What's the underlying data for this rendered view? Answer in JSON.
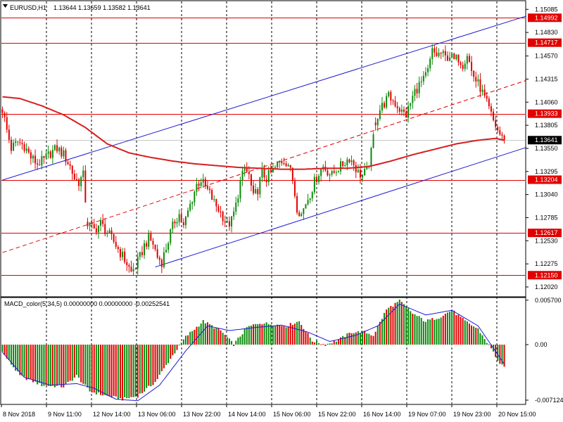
{
  "chart_data": [
    {
      "type": "candlestick",
      "header": {
        "symbol_tf": "EURUSD,H1",
        "ohlc": "1.13644 1.13659 1.13582 1.13641"
      },
      "y_axis": {
        "ylim": [
          1.1202,
          1.15095
        ],
        "ticks": [
          "1.15085",
          "1.14830",
          "1.14570",
          "1.14315",
          "1.14060",
          "1.13805",
          "1.13550",
          "1.13295",
          "1.13040",
          "1.12785",
          "1.12530",
          "1.12275",
          "1.12020"
        ]
      },
      "x_axis": {
        "labels": [
          "8 Nov 2018",
          "9 Nov 11:00",
          "12 Nov 14:00",
          "13 Nov 06:00",
          "13 Nov 22:00",
          "14 Nov 14:00",
          "15 Nov 06:00",
          "15 Nov 22:00",
          "16 Nov 14:00",
          "19 Nov 07:00",
          "19 Nov 23:00",
          "20 Nov 15:00"
        ]
      },
      "horizontal_levels": [
        {
          "label": "1.14992",
          "value": 1.14992
        },
        {
          "label": "1.14717",
          "value": 1.14717
        },
        {
          "label": "1.13933",
          "value": 1.13933
        },
        {
          "label": "1.13204",
          "value": 1.13204
        },
        {
          "label": "1.12617",
          "value": 1.12617
        },
        {
          "label": "1.12150",
          "value": 1.1215
        }
      ],
      "current_price": {
        "label": "1.13641",
        "value": 1.13641
      },
      "colors": {
        "bull": "#0a8a0a",
        "bear": "#e00000",
        "moving_average": "#d81e1e",
        "channel": "#1a1ad4",
        "level_line": "#e00000",
        "grid": "#000000"
      },
      "price_path": [
        [
          0,
          1.1398
        ],
        [
          2,
          1.1375
        ],
        [
          4,
          1.1355
        ],
        [
          7,
          1.1362
        ],
        [
          10,
          1.1358
        ],
        [
          13,
          1.1345
        ],
        [
          16,
          1.1338
        ],
        [
          19,
          1.1342
        ],
        [
          22,
          1.135
        ],
        [
          25,
          1.1355
        ],
        [
          28,
          1.1348
        ],
        [
          31,
          1.1335
        ],
        [
          33,
          1.1322
        ],
        [
          35,
          1.1318
        ],
        [
          37,
          1.1325
        ],
        [
          39,
          1.1272
        ],
        [
          42,
          1.1265
        ],
        [
          45,
          1.1272
        ],
        [
          48,
          1.1262
        ],
        [
          51,
          1.1252
        ],
        [
          54,
          1.124
        ],
        [
          57,
          1.1228
        ],
        [
          59,
          1.1218
        ],
        [
          61,
          1.1225
        ],
        [
          63,
          1.1235
        ],
        [
          65,
          1.1248
        ],
        [
          67,
          1.1255
        ],
        [
          69,
          1.125
        ],
        [
          71,
          1.1235
        ],
        [
          73,
          1.123
        ],
        [
          75,
          1.1245
        ],
        [
          77,
          1.1262
        ],
        [
          79,
          1.1275
        ],
        [
          81,
          1.1282
        ],
        [
          83,
          1.1268
        ],
        [
          85,
          1.1285
        ],
        [
          87,
          1.13
        ],
        [
          89,
          1.1315
        ],
        [
          91,
          1.132
        ],
        [
          93,
          1.1312
        ],
        [
          95,
          1.1305
        ],
        [
          97,
          1.1295
        ],
        [
          99,
          1.1288
        ],
        [
          101,
          1.128
        ],
        [
          103,
          1.127
        ],
        [
          105,
          1.1275
        ],
        [
          107,
          1.1292
        ],
        [
          109,
          1.1318
        ],
        [
          111,
          1.1332
        ],
        [
          113,
          1.1325
        ],
        [
          115,
          1.13
        ],
        [
          117,
          1.131
        ],
        [
          119,
          1.1328
        ],
        [
          121,
          1.1322
        ],
        [
          123,
          1.1328
        ],
        [
          125,
          1.1333
        ],
        [
          127,
          1.134
        ],
        [
          129,
          1.1342
        ],
        [
          131,
          1.1338
        ],
        [
          133,
          1.132
        ],
        [
          135,
          1.129
        ],
        [
          137,
          1.1282
        ],
        [
          139,
          1.1295
        ],
        [
          141,
          1.1305
        ],
        [
          143,
          1.1318
        ],
        [
          145,
          1.1328
        ],
        [
          147,
          1.1335
        ],
        [
          149,
          1.133
        ],
        [
          151,
          1.1325
        ],
        [
          153,
          1.1332
        ],
        [
          155,
          1.1335
        ],
        [
          157,
          1.134
        ],
        [
          159,
          1.1345
        ],
        [
          161,
          1.1338
        ],
        [
          163,
          1.1328
        ],
        [
          165,
          1.1325
        ],
        [
          167,
          1.133
        ],
        [
          169,
          1.135
        ],
        [
          171,
          1.1385
        ],
        [
          173,
          1.1398
        ],
        [
          175,
          1.1405
        ],
        [
          177,
          1.1412
        ],
        [
          179,
          1.1408
        ],
        [
          181,
          1.1402
        ],
        [
          183,
          1.1395
        ],
        [
          185,
          1.1392
        ],
        [
          187,
          1.1405
        ],
        [
          189,
          1.1418
        ],
        [
          191,
          1.1425
        ],
        [
          193,
          1.143
        ],
        [
          195,
          1.144
        ],
        [
          197,
          1.1462
        ],
        [
          199,
          1.1458
        ],
        [
          201,
          1.146
        ],
        [
          203,
          1.1455
        ],
        [
          205,
          1.1458
        ],
        [
          207,
          1.1452
        ],
        [
          209,
          1.1455
        ],
        [
          211,
          1.1448
        ],
        [
          213,
          1.146
        ],
        [
          215,
          1.144
        ],
        [
          217,
          1.143
        ],
        [
          219,
          1.1422
        ],
        [
          221,
          1.141
        ],
        [
          223,
          1.1398
        ],
        [
          225,
          1.1385
        ],
        [
          227,
          1.1375
        ],
        [
          229,
          1.1366
        ],
        [
          230,
          1.13641
        ]
      ],
      "moving_average": [
        [
          0,
          1.1412
        ],
        [
          8,
          1.141
        ],
        [
          18,
          1.1402
        ],
        [
          28,
          1.1392
        ],
        [
          38,
          1.1378
        ],
        [
          48,
          1.136
        ],
        [
          58,
          1.135
        ],
        [
          68,
          1.1345
        ],
        [
          78,
          1.1341
        ],
        [
          88,
          1.1338
        ],
        [
          98,
          1.1336
        ],
        [
          108,
          1.1334
        ],
        [
          118,
          1.1333
        ],
        [
          128,
          1.1332
        ],
        [
          138,
          1.1332
        ],
        [
          148,
          1.1333
        ],
        [
          158,
          1.1333
        ],
        [
          168,
          1.1335
        ],
        [
          178,
          1.1341
        ],
        [
          188,
          1.1348
        ],
        [
          198,
          1.1354
        ],
        [
          208,
          1.136
        ],
        [
          218,
          1.1364
        ],
        [
          226,
          1.1366
        ],
        [
          230,
          1.1364
        ]
      ],
      "channel_lines": [
        {
          "style": "solid",
          "from": [
            0,
            1.132
          ],
          "to": [
            240,
            1.1501
          ]
        },
        {
          "style": "solid",
          "from": [
            70,
            1.1224
          ],
          "to": [
            240,
            1.1356
          ]
        },
        {
          "style": "dashed",
          "from": [
            0,
            1.124
          ],
          "to": [
            240,
            1.143
          ]
        }
      ]
    },
    {
      "type": "histogram",
      "header": "MACD_color(5,34,5) 0.00000000 0.00000000 -0.00252541",
      "y_axis": {
        "ylim": [
          -0.00758,
          0.00595
        ],
        "ticks": [
          "0.005700",
          "0.00",
          "-0.007124"
        ]
      },
      "colors": {
        "positive": "#0a8a0a",
        "negative": "#e00000",
        "signal": "#1a1ad4"
      },
      "histogram": [
        [
          0,
          -0.001
        ],
        [
          8,
          -0.004
        ],
        [
          18,
          -0.0052
        ],
        [
          28,
          -0.0054
        ],
        [
          34,
          -0.004
        ],
        [
          40,
          -0.006
        ],
        [
          48,
          -0.0066
        ],
        [
          55,
          -0.007
        ],
        [
          62,
          -0.0066
        ],
        [
          70,
          -0.0048
        ],
        [
          77,
          -0.0018
        ],
        [
          84,
          0.001
        ],
        [
          92,
          0.003
        ],
        [
          100,
          0.0018
        ],
        [
          106,
          0.0
        ],
        [
          112,
          0.0022
        ],
        [
          118,
          0.0028
        ],
        [
          124,
          0.0026
        ],
        [
          130,
          0.0024
        ],
        [
          136,
          0.003
        ],
        [
          142,
          0.0005
        ],
        [
          148,
          0.0
        ],
        [
          154,
          0.0006
        ],
        [
          160,
          0.0016
        ],
        [
          166,
          0.0016
        ],
        [
          170,
          0.0012
        ],
        [
          176,
          0.0045
        ],
        [
          182,
          0.0056
        ],
        [
          188,
          0.004
        ],
        [
          194,
          0.003
        ],
        [
          200,
          0.0035
        ],
        [
          206,
          0.0044
        ],
        [
          212,
          0.003
        ],
        [
          218,
          0.002
        ],
        [
          224,
          -0.0005
        ],
        [
          228,
          -0.0025
        ],
        [
          230,
          -0.003
        ]
      ],
      "signal": [
        [
          0,
          -0.001
        ],
        [
          10,
          -0.0042
        ],
        [
          22,
          -0.0052
        ],
        [
          34,
          -0.005
        ],
        [
          42,
          -0.0056
        ],
        [
          52,
          -0.007
        ],
        [
          62,
          -0.0072
        ],
        [
          72,
          -0.0052
        ],
        [
          84,
          -0.0008
        ],
        [
          94,
          0.0024
        ],
        [
          104,
          0.0018
        ],
        [
          116,
          0.0022
        ],
        [
          128,
          0.0025
        ],
        [
          140,
          0.0016
        ],
        [
          150,
          0.0004
        ],
        [
          162,
          0.0012
        ],
        [
          172,
          0.0024
        ],
        [
          182,
          0.0052
        ],
        [
          194,
          0.0038
        ],
        [
          206,
          0.0044
        ],
        [
          218,
          0.0024
        ],
        [
          230,
          -0.0025
        ]
      ]
    }
  ]
}
